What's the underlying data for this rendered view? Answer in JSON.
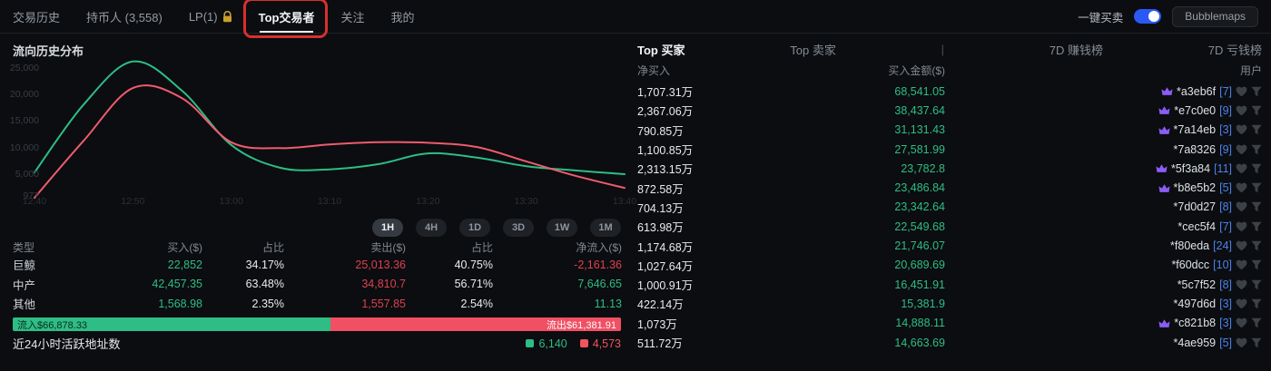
{
  "nav": {
    "items": [
      {
        "label": "交易历史",
        "active": false
      },
      {
        "label": "持币人 (3,558)",
        "active": false
      },
      {
        "label": "LP(1)",
        "active": false,
        "lock": true
      },
      {
        "label": "Top交易者",
        "active": true,
        "annotated": true
      },
      {
        "label": "关注",
        "active": false
      },
      {
        "label": "我的",
        "active": false
      }
    ],
    "quick_trade_label": "一键买卖",
    "quick_trade_on": true,
    "bubblemaps_label": "Bubblemaps"
  },
  "flow": {
    "title": "流向历史分布",
    "time_ranges": [
      "1H",
      "4H",
      "1D",
      "3D",
      "1W",
      "1M"
    ],
    "active_range": "1H",
    "table": {
      "headers": [
        "类型",
        "买入($)",
        "占比",
        "卖出($)",
        "占比",
        "净流入($)"
      ],
      "rows": [
        {
          "type": "巨鲸",
          "buy": "22,852",
          "buy_pct": "34.17%",
          "sell": "25,013.36",
          "sell_pct": "40.75%",
          "net": "-2,161.36",
          "net_dir": "neg"
        },
        {
          "type": "中产",
          "buy": "42,457.35",
          "buy_pct": "63.48%",
          "sell": "34,810.7",
          "sell_pct": "56.71%",
          "net": "7,646.65",
          "net_dir": "pos"
        },
        {
          "type": "其他",
          "buy": "1,568.98",
          "buy_pct": "2.35%",
          "sell": "1,557.85",
          "sell_pct": "2.54%",
          "net": "11.13",
          "net_dir": "pos"
        }
      ]
    },
    "bar": {
      "inflow_label": "流入$66,878.33",
      "outflow_label": "流出$61,381.91",
      "inflow_pct": 52.2
    },
    "active_addresses": {
      "label": "近24小时活跃地址数",
      "buyers": "6,140",
      "sellers": "4,573"
    }
  },
  "chart_data": {
    "type": "line",
    "title": "流向历史分布",
    "xlabel": "",
    "ylabel": "",
    "grid": false,
    "legend_position": "none",
    "x": [
      "12:40",
      "12:45",
      "12:50",
      "12:55",
      "13:00",
      "13:05",
      "13:10",
      "13:15",
      "13:20",
      "13:25",
      "13:30",
      "13:35",
      "13:40"
    ],
    "x_ticks": [
      "12:40",
      "12:50",
      "13:00",
      "13:10",
      "13:20",
      "13:30",
      "13:40"
    ],
    "y_ticks": [
      25000,
      20000,
      15000,
      10000,
      5000,
      977
    ],
    "y_tick_labels": [
      "25,000",
      "20,000",
      "15,000",
      "10,000",
      "5,000",
      "977"
    ],
    "ylim": [
      500,
      27500
    ],
    "series": [
      {
        "name": "流入",
        "color": "#2ebd85",
        "values": [
          5300,
          18100,
          26200,
          20700,
          10500,
          6200,
          5900,
          6900,
          8900,
          8100,
          6500,
          5700,
          5000
        ]
      },
      {
        "name": "流出",
        "color": "#ef5b6e",
        "values": [
          570,
          11300,
          21200,
          19300,
          11000,
          9900,
          10600,
          11000,
          10900,
          10100,
          7400,
          4700,
          2400
        ]
      }
    ]
  },
  "traders": {
    "tabs": [
      {
        "label": "Top 买家",
        "active": true
      },
      {
        "label": "Top 卖家",
        "active": false
      },
      {
        "label": "7D 赚钱榜",
        "active": false
      },
      {
        "label": "7D 亏钱榜",
        "active": false
      }
    ],
    "tabs_separator": "|",
    "headers": {
      "net_buy": "净买入",
      "amount": "买入金额($)",
      "user": "用户"
    },
    "rows": [
      {
        "net": "1,707.31万",
        "amount": "68,541.05",
        "crown": true,
        "addr": "*a3eb6f",
        "tx": "[7]"
      },
      {
        "net": "2,367.06万",
        "amount": "38,437.64",
        "crown": true,
        "addr": "*e7c0e0",
        "tx": "[9]"
      },
      {
        "net": "790.85万",
        "amount": "31,131.43",
        "crown": true,
        "addr": "*7a14eb",
        "tx": "[3]"
      },
      {
        "net": "1,100.85万",
        "amount": "27,581.99",
        "crown": false,
        "addr": "*7a8326",
        "tx": "[9]"
      },
      {
        "net": "2,313.15万",
        "amount": "23,782.8",
        "crown": true,
        "addr": "*5f3a84",
        "tx": "[11]"
      },
      {
        "net": "872.58万",
        "amount": "23,486.84",
        "crown": true,
        "addr": "*b8e5b2",
        "tx": "[5]"
      },
      {
        "net": "704.13万",
        "amount": "23,342.64",
        "crown": false,
        "addr": "*7d0d27",
        "tx": "[8]"
      },
      {
        "net": "613.98万",
        "amount": "22,549.68",
        "crown": false,
        "addr": "*cec5f4",
        "tx": "[7]"
      },
      {
        "net": "1,174.68万",
        "amount": "21,746.07",
        "crown": false,
        "addr": "*f80eda",
        "tx": "[24]"
      },
      {
        "net": "1,027.64万",
        "amount": "20,689.69",
        "crown": false,
        "addr": "*f60dcc",
        "tx": "[10]"
      },
      {
        "net": "1,000.91万",
        "amount": "16,451.91",
        "crown": false,
        "addr": "*5c7f52",
        "tx": "[8]"
      },
      {
        "net": "422.14万",
        "amount": "15,381.9",
        "crown": false,
        "addr": "*497d6d",
        "tx": "[3]"
      },
      {
        "net": "1,073万",
        "amount": "14,888.11",
        "crown": true,
        "addr": "*c821b8",
        "tx": "[3]"
      },
      {
        "net": "511.72万",
        "amount": "14,663.69",
        "crown": false,
        "addr": "*4ae959",
        "tx": "[5]"
      }
    ]
  },
  "colors": {
    "green": "#2ebd85",
    "red_value": "#dd4150",
    "bar_red": "#f14f63",
    "tx_blue": "#4e82ea",
    "crown_purple": "#8b5cf6",
    "toggle_blue": "#2b59f5",
    "annotation_red": "#d92f2f",
    "lock_gold": "#c7a02c"
  }
}
